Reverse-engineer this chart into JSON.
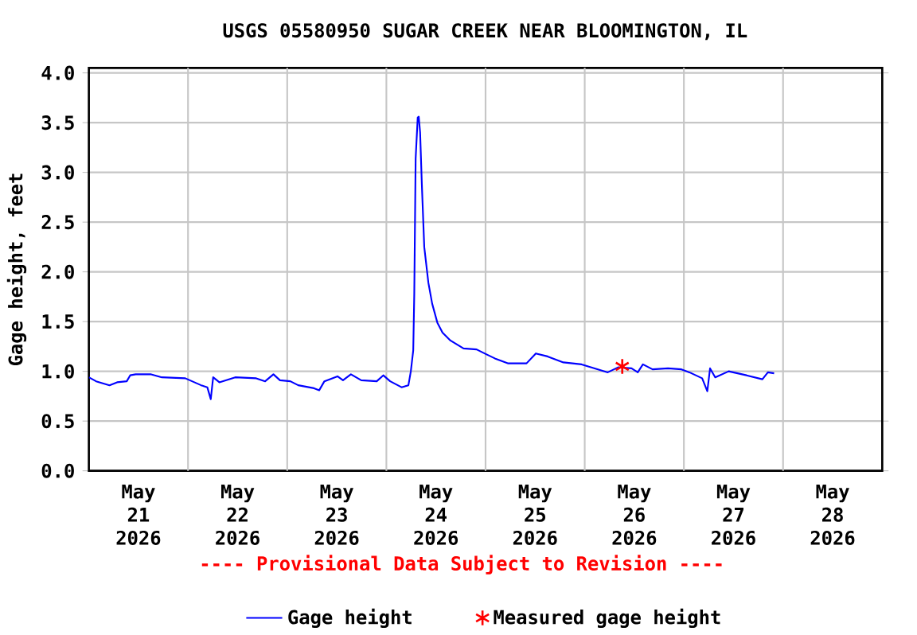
{
  "chart_data": {
    "type": "line",
    "title": "USGS 05580950 SUGAR CREEK NEAR BLOOMINGTON, IL",
    "ylabel": "Gage height, feet",
    "annotations": [
      "---- Provisional Data Subject to Revision ----"
    ],
    "xlim": [
      "2026-05-20T12:00",
      "2026-05-28T12:00"
    ],
    "xticks": [
      {
        "value": "2026-05-21",
        "label": "May 21 2026"
      },
      {
        "value": "2026-05-22",
        "label": "May 22 2026"
      },
      {
        "value": "2026-05-23",
        "label": "May 23 2026"
      },
      {
        "value": "2026-05-24",
        "label": "May 24 2026"
      },
      {
        "value": "2026-05-25",
        "label": "May 25 2026"
      },
      {
        "value": "2026-05-26",
        "label": "May 26 2026"
      },
      {
        "value": "2026-05-27",
        "label": "May 27 2026"
      },
      {
        "value": "2026-05-28",
        "label": "May 28 2026"
      },
      {
        "value": "2026-05-21T12:00",
        "label": null
      },
      {
        "value": "2026-05-22T12:00",
        "label": null
      },
      {
        "value": "2026-05-23T12:00",
        "label": null
      },
      {
        "value": "2026-05-24T12:00",
        "label": null
      },
      {
        "value": "2026-05-25T12:00",
        "label": null
      },
      {
        "value": "2026-05-26T12:00",
        "label": null
      },
      {
        "value": "2026-05-27T12:00",
        "label": null
      }
    ],
    "ylim": [
      0,
      4.05
    ],
    "yticks": [
      {
        "value": 0,
        "label": "0.0"
      },
      0.5,
      {
        "value": 1,
        "label": "1.0"
      },
      1.5,
      {
        "value": 2,
        "label": "2.0"
      },
      2.5,
      {
        "value": 3,
        "label": "3.0"
      },
      3.5,
      {
        "value": 4,
        "label": "4.0"
      }
    ],
    "grid": true,
    "legend": "bottom",
    "series": [
      {
        "name": "Gage height",
        "color": "#0000ff",
        "marker": "none",
        "x": [
          "2026-05-20T12:00",
          "2026-05-20T13:45",
          "2026-05-20T17:00",
          "2026-05-20T18:50",
          "2026-05-20T21:10",
          "2026-05-20T22:00",
          "2026-05-20T23:20",
          "2026-05-21T03:05",
          "2026-05-21T05:40",
          "2026-05-21T11:20",
          "2026-05-21T15:10",
          "2026-05-21T16:40",
          "2026-05-21T17:30",
          "2026-05-21T18:05",
          "2026-05-21T19:35",
          "2026-05-21T23:25",
          "2026-05-22T04:30",
          "2026-05-22T06:40",
          "2026-05-22T08:40",
          "2026-05-22T10:15",
          "2026-05-22T12:45",
          "2026-05-22T14:40",
          "2026-05-22T18:30",
          "2026-05-22T19:45",
          "2026-05-22T21:00",
          "2026-05-23T00:10",
          "2026-05-23T01:30",
          "2026-05-23T03:25",
          "2026-05-23T05:55",
          "2026-05-23T09:40",
          "2026-05-23T11:15",
          "2026-05-23T12:55",
          "2026-05-23T15:40",
          "2026-05-23T17:20",
          "2026-05-23T17:55",
          "2026-05-23T18:30",
          "2026-05-23T18:45",
          "2026-05-23T19:05",
          "2026-05-23T19:35",
          "2026-05-23T19:50",
          "2026-05-23T20:10",
          "2026-05-23T20:35",
          "2026-05-23T21:10",
          "2026-05-23T22:10",
          "2026-05-23T23:05",
          "2026-05-24T00:20",
          "2026-05-24T01:35",
          "2026-05-24T03:30",
          "2026-05-24T06:40",
          "2026-05-24T09:50",
          "2026-05-24T11:45",
          "2026-05-24T14:15",
          "2026-05-24T17:30",
          "2026-05-24T21:55",
          "2026-05-25T00:10",
          "2026-05-25T03:00",
          "2026-05-25T06:50",
          "2026-05-25T11:15",
          "2026-05-25T14:25",
          "2026-05-25T17:35",
          "2026-05-25T20:05",
          "2026-05-25T23:20",
          "2026-05-26T00:50",
          "2026-05-26T02:05",
          "2026-05-26T04:25",
          "2026-05-26T08:10",
          "2026-05-26T11:25",
          "2026-05-26T13:20",
          "2026-05-26T16:25",
          "2026-05-26T17:40",
          "2026-05-26T18:20",
          "2026-05-26T19:35",
          "2026-05-26T22:50",
          "2026-05-27T03:10",
          "2026-05-27T07:00",
          "2026-05-27T08:20",
          "2026-05-27T09:50"
        ],
        "values": [
          0.94,
          0.9,
          0.86,
          0.89,
          0.9,
          0.96,
          0.97,
          0.97,
          0.94,
          0.93,
          0.86,
          0.84,
          0.72,
          0.94,
          0.89,
          0.94,
          0.93,
          0.9,
          0.97,
          0.91,
          0.9,
          0.86,
          0.83,
          0.81,
          0.9,
          0.95,
          0.91,
          0.97,
          0.91,
          0.9,
          0.96,
          0.9,
          0.84,
          0.86,
          1.0,
          1.21,
          1.78,
          3.14,
          3.55,
          3.56,
          3.4,
          2.88,
          2.25,
          1.89,
          1.68,
          1.49,
          1.39,
          1.31,
          1.23,
          1.22,
          1.18,
          1.13,
          1.08,
          1.08,
          1.18,
          1.15,
          1.09,
          1.07,
          1.03,
          0.99,
          1.04,
          1.03,
          0.99,
          1.07,
          1.02,
          1.03,
          1.02,
          0.99,
          0.93,
          0.8,
          1.03,
          0.94,
          1.0,
          0.96,
          0.92,
          0.99,
          0.98
        ]
      },
      {
        "name": "Measured gage height",
        "type": "scatter",
        "color": "#ff0000",
        "marker": "cross",
        "x": [
          "2026-05-25T21:05"
        ],
        "values": [
          1.05
        ]
      }
    ]
  }
}
